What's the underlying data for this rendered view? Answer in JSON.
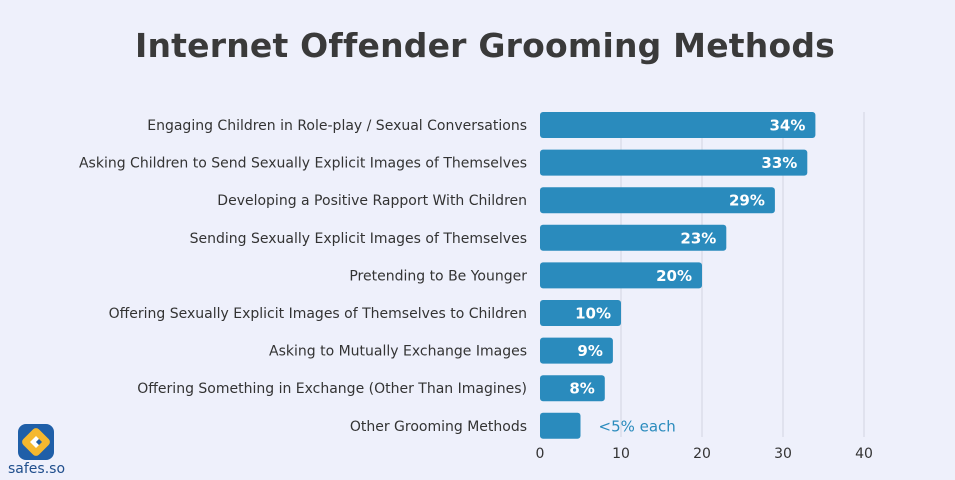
{
  "colors": {
    "bar": "#2a8bbd",
    "value_label": "#ffffff",
    "outside_label": "#2a8bbd",
    "grid": "#d2d5e0",
    "background": "#eef0fb"
  },
  "brand": {
    "name": "safes.so",
    "icon": "safes-logo-icon"
  },
  "chart_data": {
    "type": "bar",
    "orientation": "horizontal",
    "title": "Internet Offender Grooming Methods",
    "xlabel": "",
    "ylabel": "",
    "xlim": [
      0,
      40
    ],
    "xticks": [
      0,
      10,
      20,
      30,
      40
    ],
    "grid": "vertical",
    "categories": [
      "Engaging Children in Role-play / Sexual Conversations",
      "Asking Children to Send Sexually Explicit Images of Themselves",
      "Developing a Positive Rapport With Children",
      "Sending Sexually Explicit Images of Themselves",
      "Pretending to Be Younger",
      "Offering Sexually Explicit Images of Themselves to Children",
      "Asking to Mutually Exchange Images",
      "Offering Something in Exchange (Other Than Imagines)",
      "Other Grooming Methods"
    ],
    "values": [
      34,
      33,
      29,
      23,
      20,
      10,
      9,
      8,
      5
    ],
    "value_labels": [
      "34%",
      "33%",
      "29%",
      "23%",
      "20%",
      "10%",
      "9%",
      "8%",
      "<5% each"
    ],
    "label_outside": [
      false,
      false,
      false,
      false,
      false,
      false,
      false,
      false,
      true
    ]
  }
}
